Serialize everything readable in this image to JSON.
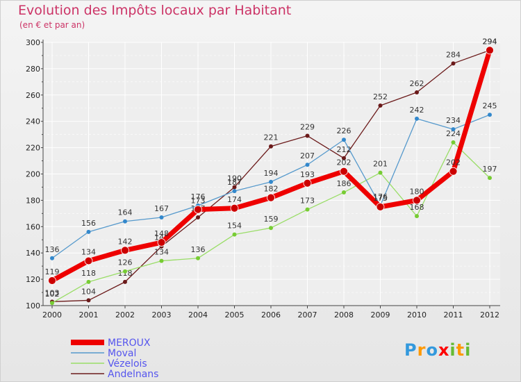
{
  "header": {
    "title": "Evolution des Impôts locaux par Habitant",
    "subtitle": "(en € et par an)"
  },
  "logo": {
    "letters": [
      "P",
      "r",
      "o",
      "x",
      "i",
      "t",
      "i"
    ]
  },
  "chart_data": {
    "type": "line",
    "title": "Evolution des Impôts locaux par Habitant",
    "subtitle": "(en € et par an)",
    "xlabel": "",
    "ylabel": "",
    "x": [
      "2000",
      "2001",
      "2002",
      "2003",
      "2004",
      "2005",
      "2006",
      "2007",
      "2008",
      "2009",
      "2010",
      "2011",
      "2012"
    ],
    "ylim": [
      100,
      300
    ],
    "yticks": [
      "100",
      "120",
      "140",
      "160",
      "180",
      "200",
      "220",
      "240",
      "260",
      "280",
      "300"
    ],
    "grid": true,
    "legend_position": "bottom-left",
    "series": [
      {
        "name": "Andelnans",
        "color": "#6b1a1a",
        "dot": "#6b1a1a",
        "width": 1.3,
        "values": [
          103,
          104,
          118,
          145,
          167,
          190,
          221,
          229,
          212,
          252,
          262,
          284,
          294
        ],
        "labels": [
          "103",
          "104",
          "118",
          "145",
          "167",
          "190",
          "221",
          "229",
          "212",
          "252",
          "262",
          "284",
          "294"
        ]
      },
      {
        "name": "Vézelois",
        "color": "#99dd66",
        "dot": "#77cc33",
        "width": 1.3,
        "values": [
          102,
          118,
          126,
          134,
          136,
          154,
          159,
          173,
          186,
          201,
          168,
          224,
          197
        ],
        "labels": [
          "102",
          "118",
          "126",
          "134",
          "136",
          "154",
          "159",
          "173",
          "186",
          "201",
          "168",
          "224",
          "197"
        ]
      },
      {
        "name": "Moval",
        "color": "#5599cc",
        "dot": "#3388cc",
        "width": 1.3,
        "values": [
          136,
          156,
          164,
          167,
          176,
          187,
          194,
          207,
          226,
          176,
          242,
          234,
          245
        ],
        "labels": [
          "136",
          "156",
          "164",
          "167",
          "176",
          "187",
          "194",
          "207",
          "226",
          "176",
          "242",
          "234",
          "245"
        ]
      },
      {
        "name": "MEROUX",
        "color": "#ee0000",
        "dot": "#cc0000",
        "width": 7,
        "values": [
          119,
          134,
          142,
          148,
          173,
          174,
          182,
          193,
          202,
          175,
          180,
          202,
          294
        ],
        "labels": [
          "119",
          "134",
          "142",
          "148",
          "173",
          "174",
          "182",
          "193",
          "202",
          "175",
          "180",
          "202",
          "294"
        ]
      }
    ],
    "legend": [
      {
        "name": "MEROUX",
        "color": "#ee0000",
        "text_color": "#5555ee"
      },
      {
        "name": "Moval",
        "color": "#5599cc",
        "text_color": "#5555ee"
      },
      {
        "name": "Vézelois",
        "color": "#99dd66",
        "text_color": "#5555ee"
      },
      {
        "name": "Andelnans",
        "color": "#6b1a1a",
        "text_color": "#5555ee"
      }
    ]
  }
}
